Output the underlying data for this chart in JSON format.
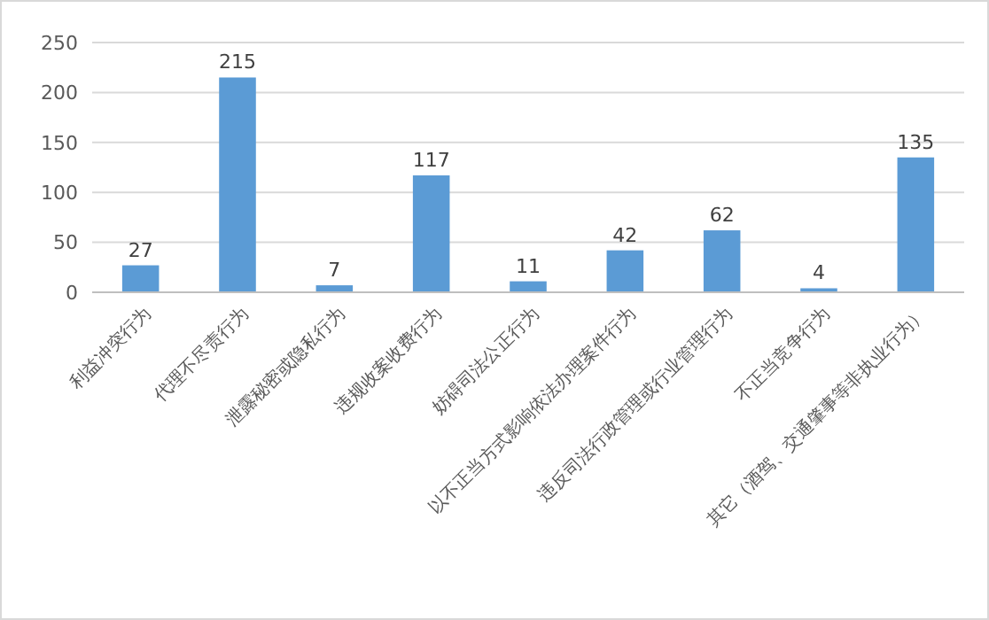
{
  "chart_data": {
    "type": "bar",
    "categories": [
      "利益冲突行为",
      "代理不尽责行为",
      "泄露秘密或隐私行为",
      "违规收案收费行为",
      "妨碍司法公正行为",
      "以不正当方式影响依法办理案件行为",
      "违反司法行政管理或行业管理行为",
      "不正当竞争行为",
      "其它（酒驾、交通肇事等非执业行为）"
    ],
    "values": [
      27,
      215,
      7,
      117,
      11,
      42,
      62,
      4,
      135
    ],
    "color": "#5b9bd5",
    "ylim": [
      0,
      250
    ],
    "yticks": [
      0,
      50,
      100,
      150,
      200,
      250
    ],
    "grid": "y",
    "data_labels": true
  }
}
